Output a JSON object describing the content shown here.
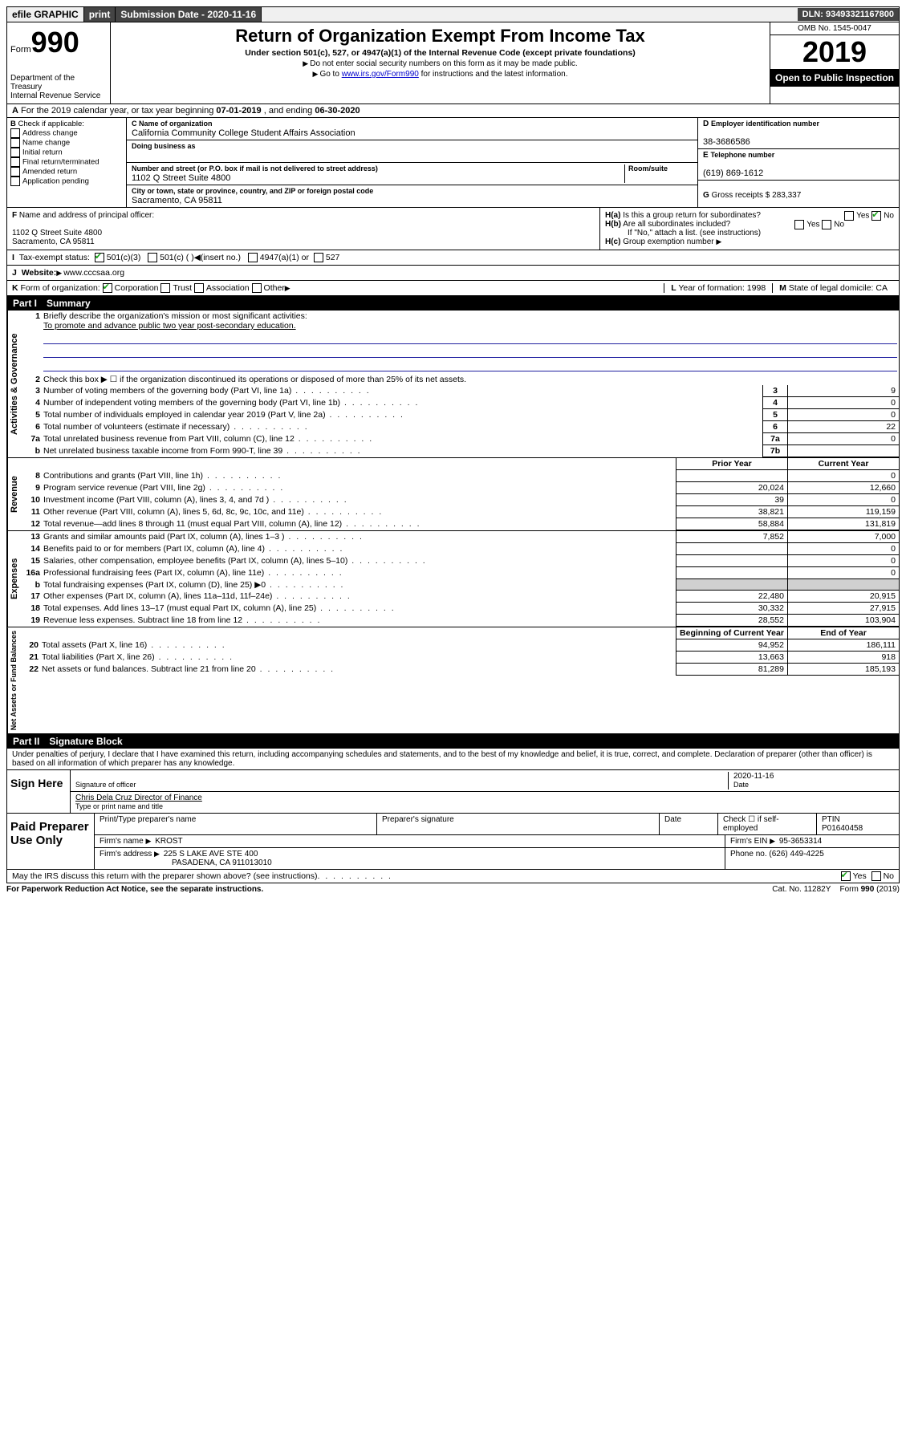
{
  "topbar": {
    "efile": "efile GRAPHIC",
    "print": "print",
    "submission_label": "Submission Date - ",
    "submission_date": "2020-11-16",
    "dln_label": "DLN: ",
    "dln": "93493321167800"
  },
  "header": {
    "form_word": "Form",
    "form_number": "990",
    "dept": "Department of the Treasury",
    "irs": "Internal Revenue Service",
    "title": "Return of Organization Exempt From Income Tax",
    "subtitle": "Under section 501(c), 527, or 4947(a)(1) of the Internal Revenue Code (except private foundations)",
    "instr1": "Do not enter social security numbers on this form as it may be made public.",
    "instr2_pre": "Go to ",
    "instr2_link": "www.irs.gov/Form990",
    "instr2_post": " for instructions and the latest information.",
    "omb": "OMB No. 1545-0047",
    "year": "2019",
    "open_public": "Open to Public Inspection"
  },
  "rowA": {
    "text_pre": "For the 2019 calendar year, or tax year beginning ",
    "begin": "07-01-2019",
    "mid": " , and ending ",
    "end": "06-30-2020"
  },
  "boxB": {
    "label": "Check if applicable:",
    "items": [
      "Address change",
      "Name change",
      "Initial return",
      "Final return/terminated",
      "Amended return",
      "Application pending"
    ]
  },
  "boxC": {
    "name_label": "Name of organization",
    "name": "California Community College Student Affairs Association",
    "dba_label": "Doing business as",
    "dba": "",
    "street_label": "Number and street (or P.O. box if mail is not delivered to street address)",
    "room_label": "Room/suite",
    "street": "1102 Q Street Suite 4800",
    "city_label": "City or town, state or province, country, and ZIP or foreign postal code",
    "city": "Sacramento, CA  95811"
  },
  "boxD": {
    "label": "Employer identification number",
    "val": "38-3686586"
  },
  "boxE": {
    "label": "Telephone number",
    "val": "(619) 869-1612"
  },
  "boxG": {
    "label": "Gross receipts $",
    "val": "283,337"
  },
  "boxF": {
    "label": "Name and address of principal officer:",
    "line1": "1102 Q Street Suite 4800",
    "line2": "Sacramento, CA  95811"
  },
  "boxH": {
    "a": "Is this a group return for subordinates?",
    "a_yes": "Yes",
    "a_no": "No",
    "b": "Are all subordinates included?",
    "b_note": "If \"No,\" attach a list. (see instructions)",
    "c": "Group exemption number"
  },
  "rowI": {
    "label": "Tax-exempt status:",
    "opt1": "501(c)(3)",
    "opt2": "501(c) (   )",
    "opt2_note": "(insert no.)",
    "opt3": "4947(a)(1) or",
    "opt4": "527"
  },
  "rowJ": {
    "label": "Website:",
    "val": "www.cccsaa.org"
  },
  "rowK": {
    "label": "Form of organization:",
    "opts": [
      "Corporation",
      "Trust",
      "Association",
      "Other"
    ],
    "L_label": "Year of formation:",
    "L_val": "1998",
    "M_label": "State of legal domicile:",
    "M_val": "CA"
  },
  "part1": {
    "label": "Part I",
    "title": "Summary",
    "q1_label": "Briefly describe the organization's mission or most significant activities:",
    "q1_val": "To promote and advance public two year post-secondary education.",
    "q2": "Check this box ▶ ☐  if the organization discontinued its operations or disposed of more than 25% of its net assets.",
    "governance_rows": [
      {
        "n": "3",
        "desc": "Number of voting members of the governing body (Part VI, line 1a)",
        "box": "3",
        "val": "9"
      },
      {
        "n": "4",
        "desc": "Number of independent voting members of the governing body (Part VI, line 1b)",
        "box": "4",
        "val": "0"
      },
      {
        "n": "5",
        "desc": "Total number of individuals employed in calendar year 2019 (Part V, line 2a)",
        "box": "5",
        "val": "0"
      },
      {
        "n": "6",
        "desc": "Total number of volunteers (estimate if necessary)",
        "box": "6",
        "val": "22"
      },
      {
        "n": "7a",
        "desc": "Total unrelated business revenue from Part VIII, column (C), line 12",
        "box": "7a",
        "val": "0"
      },
      {
        "n": "b",
        "desc": "Net unrelated business taxable income from Form 990-T, line 39",
        "box": "7b",
        "val": ""
      }
    ],
    "col_prior": "Prior Year",
    "col_current": "Current Year",
    "revenue_rows": [
      {
        "n": "8",
        "desc": "Contributions and grants (Part VIII, line 1h)",
        "p": "",
        "c": "0"
      },
      {
        "n": "9",
        "desc": "Program service revenue (Part VIII, line 2g)",
        "p": "20,024",
        "c": "12,660"
      },
      {
        "n": "10",
        "desc": "Investment income (Part VIII, column (A), lines 3, 4, and 7d )",
        "p": "39",
        "c": "0"
      },
      {
        "n": "11",
        "desc": "Other revenue (Part VIII, column (A), lines 5, 6d, 8c, 9c, 10c, and 11e)",
        "p": "38,821",
        "c": "119,159"
      },
      {
        "n": "12",
        "desc": "Total revenue—add lines 8 through 11 (must equal Part VIII, column (A), line 12)",
        "p": "58,884",
        "c": "131,819"
      }
    ],
    "expense_rows": [
      {
        "n": "13",
        "desc": "Grants and similar amounts paid (Part IX, column (A), lines 1–3 )",
        "p": "7,852",
        "c": "7,000"
      },
      {
        "n": "14",
        "desc": "Benefits paid to or for members (Part IX, column (A), line 4)",
        "p": "",
        "c": "0"
      },
      {
        "n": "15",
        "desc": "Salaries, other compensation, employee benefits (Part IX, column (A), lines 5–10)",
        "p": "",
        "c": "0"
      },
      {
        "n": "16a",
        "desc": "Professional fundraising fees (Part IX, column (A), line 11e)",
        "p": "",
        "c": "0"
      },
      {
        "n": "b",
        "desc": "Total fundraising expenses (Part IX, column (D), line 25) ▶0",
        "p": "",
        "c": "",
        "shaded": true
      },
      {
        "n": "17",
        "desc": "Other expenses (Part IX, column (A), lines 11a–11d, 11f–24e)",
        "p": "22,480",
        "c": "20,915"
      },
      {
        "n": "18",
        "desc": "Total expenses. Add lines 13–17 (must equal Part IX, column (A), line 25)",
        "p": "30,332",
        "c": "27,915"
      },
      {
        "n": "19",
        "desc": "Revenue less expenses. Subtract line 18 from line 12",
        "p": "28,552",
        "c": "103,904"
      }
    ],
    "col_begin": "Beginning of Current Year",
    "col_end": "End of Year",
    "netassets_rows": [
      {
        "n": "20",
        "desc": "Total assets (Part X, line 16)",
        "p": "94,952",
        "c": "186,111"
      },
      {
        "n": "21",
        "desc": "Total liabilities (Part X, line 26)",
        "p": "13,663",
        "c": "918"
      },
      {
        "n": "22",
        "desc": "Net assets or fund balances. Subtract line 21 from line 20",
        "p": "81,289",
        "c": "185,193"
      }
    ],
    "vlabels": {
      "gov": "Activities & Governance",
      "rev": "Revenue",
      "exp": "Expenses",
      "net": "Net Assets or Fund Balances"
    }
  },
  "part2": {
    "label": "Part II",
    "title": "Signature Block",
    "perjury": "Under penalties of perjury, I declare that I have examined this return, including accompanying schedules and statements, and to the best of my knowledge and belief, it is true, correct, and complete. Declaration of preparer (other than officer) is based on all information of which preparer has any knowledge.",
    "sign_here": "Sign Here",
    "sig_officer": "Signature of officer",
    "date_label": "Date",
    "sig_date": "2020-11-16",
    "officer_name": "Chris Dela Cruz  Director of Finance",
    "type_name": "Type or print name and title",
    "paid_preparer": "Paid Preparer Use Only",
    "prep_name_label": "Print/Type preparer's name",
    "prep_sig_label": "Preparer's signature",
    "prep_date_label": "Date",
    "check_self": "Check ☐ if self-employed",
    "ptin_label": "PTIN",
    "ptin": "P01640458",
    "firm_name_label": "Firm's name",
    "firm_name": "KROST",
    "firm_ein_label": "Firm's EIN",
    "firm_ein": "95-3653314",
    "firm_addr_label": "Firm's address",
    "firm_addr1": "225 S LAKE AVE STE 400",
    "firm_addr2": "PASADENA, CA  911013010",
    "phone_label": "Phone no.",
    "phone": "(626) 449-4225",
    "discuss": "May the IRS discuss this return with the preparer shown above? (see instructions)",
    "yes": "Yes",
    "no": "No"
  },
  "footer": {
    "pra": "For Paperwork Reduction Act Notice, see the separate instructions.",
    "cat": "Cat. No. 11282Y",
    "form": "Form 990 (2019)"
  }
}
